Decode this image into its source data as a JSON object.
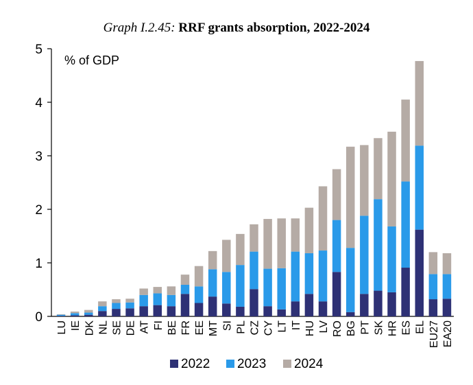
{
  "title": {
    "prefix": "Graph I.2.45:",
    "main": "RRF grants absorption, 2022-2024"
  },
  "chart_data": {
    "type": "bar",
    "stacked": true,
    "unit_label": "% of GDP",
    "ylim": [
      0,
      5
    ],
    "yticks": [
      0,
      1,
      2,
      3,
      4,
      5
    ],
    "grid": false,
    "legend_position": "bottom",
    "categories": [
      "LU",
      "IE",
      "DK",
      "NL",
      "SE",
      "DE",
      "AT",
      "FI",
      "BE",
      "FR",
      "EE",
      "MT",
      "SI",
      "PL",
      "CZ",
      "CY",
      "LT",
      "IT",
      "HU",
      "LV",
      "RO",
      "BG",
      "PT",
      "SK",
      "HR",
      "ES",
      "EL",
      "EU27",
      "EA20"
    ],
    "series": [
      {
        "name": "2022",
        "color": "#2e3175",
        "values": [
          0.01,
          0.02,
          0.03,
          0.1,
          0.14,
          0.15,
          0.19,
          0.21,
          0.19,
          0.42,
          0.25,
          0.37,
          0.24,
          0.18,
          0.51,
          0.19,
          0.13,
          0.28,
          0.42,
          0.28,
          0.83,
          0.08,
          0.42,
          0.48,
          0.45,
          0.91,
          1.62,
          0.32,
          0.33
        ]
      },
      {
        "name": "2023",
        "color": "#2a9ae9",
        "values": [
          0.02,
          0.04,
          0.04,
          0.09,
          0.11,
          0.11,
          0.21,
          0.22,
          0.21,
          0.17,
          0.31,
          0.51,
          0.59,
          0.78,
          0.7,
          0.7,
          0.77,
          0.93,
          0.76,
          0.95,
          0.97,
          1.2,
          1.46,
          1.71,
          1.23,
          1.61,
          1.57,
          0.47,
          0.46
        ]
      },
      {
        "name": "2024",
        "color": "#b5aba5",
        "values": [
          0.01,
          0.03,
          0.05,
          0.09,
          0.07,
          0.07,
          0.12,
          0.12,
          0.16,
          0.19,
          0.38,
          0.34,
          0.6,
          0.58,
          0.51,
          0.93,
          0.93,
          0.62,
          0.85,
          1.2,
          0.95,
          1.89,
          1.32,
          1.14,
          1.77,
          1.53,
          1.58,
          0.41,
          0.39
        ]
      }
    ]
  }
}
